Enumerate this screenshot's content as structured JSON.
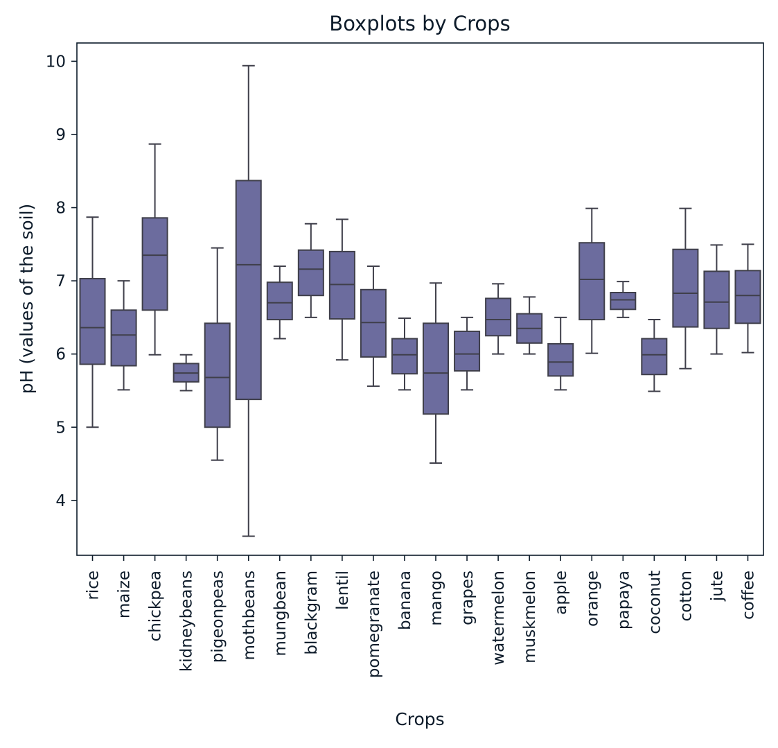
{
  "chart_data": {
    "type": "boxplot",
    "title": "Boxplots by Crops",
    "xlabel": "Crops",
    "ylabel": "pH (values of the soil)",
    "ylim": [
      3.25,
      10.25
    ],
    "yticks": [
      4,
      5,
      6,
      7,
      8,
      9,
      10
    ],
    "grid": false,
    "legend": "none",
    "box_color": "#6c6c9e",
    "line_color": "#3f3f4a",
    "categories": [
      "rice",
      "maize",
      "chickpea",
      "kidneybeans",
      "pigeonpeas",
      "mothbeans",
      "mungbean",
      "blackgram",
      "lentil",
      "pomegranate",
      "banana",
      "mango",
      "grapes",
      "watermelon",
      "muskmelon",
      "apple",
      "orange",
      "papaya",
      "coconut",
      "cotton",
      "jute",
      "coffee"
    ],
    "boxes": [
      {
        "whisker_low": 5.0,
        "q1": 5.86,
        "median": 6.36,
        "q3": 7.03,
        "whisker_high": 7.87
      },
      {
        "whisker_low": 5.51,
        "q1": 5.84,
        "median": 6.26,
        "q3": 6.6,
        "whisker_high": 7.0
      },
      {
        "whisker_low": 5.99,
        "q1": 6.6,
        "median": 7.35,
        "q3": 7.86,
        "whisker_high": 8.87
      },
      {
        "whisker_low": 5.5,
        "q1": 5.62,
        "median": 5.74,
        "q3": 5.87,
        "whisker_high": 5.99
      },
      {
        "whisker_low": 4.55,
        "q1": 5.0,
        "median": 5.68,
        "q3": 6.42,
        "whisker_high": 7.45
      },
      {
        "whisker_low": 3.51,
        "q1": 5.38,
        "median": 7.22,
        "q3": 8.37,
        "whisker_high": 9.94
      },
      {
        "whisker_low": 6.21,
        "q1": 6.47,
        "median": 6.7,
        "q3": 6.98,
        "whisker_high": 7.2
      },
      {
        "whisker_low": 6.5,
        "q1": 6.8,
        "median": 7.16,
        "q3": 7.42,
        "whisker_high": 7.78
      },
      {
        "whisker_low": 5.92,
        "q1": 6.48,
        "median": 6.95,
        "q3": 7.4,
        "whisker_high": 7.84
      },
      {
        "whisker_low": 5.56,
        "q1": 5.96,
        "median": 6.43,
        "q3": 6.88,
        "whisker_high": 7.2
      },
      {
        "whisker_low": 5.51,
        "q1": 5.73,
        "median": 5.99,
        "q3": 6.21,
        "whisker_high": 6.49
      },
      {
        "whisker_low": 4.51,
        "q1": 5.18,
        "median": 5.74,
        "q3": 6.42,
        "whisker_high": 6.97
      },
      {
        "whisker_low": 5.51,
        "q1": 5.77,
        "median": 6.0,
        "q3": 6.31,
        "whisker_high": 6.5
      },
      {
        "whisker_low": 6.0,
        "q1": 6.25,
        "median": 6.47,
        "q3": 6.76,
        "whisker_high": 6.96
      },
      {
        "whisker_low": 6.0,
        "q1": 6.15,
        "median": 6.35,
        "q3": 6.55,
        "whisker_high": 6.78
      },
      {
        "whisker_low": 5.51,
        "q1": 5.7,
        "median": 5.89,
        "q3": 6.14,
        "whisker_high": 6.5
      },
      {
        "whisker_low": 6.01,
        "q1": 6.47,
        "median": 7.02,
        "q3": 7.52,
        "whisker_high": 7.99
      },
      {
        "whisker_low": 6.5,
        "q1": 6.61,
        "median": 6.74,
        "q3": 6.84,
        "whisker_high": 6.99
      },
      {
        "whisker_low": 5.49,
        "q1": 5.72,
        "median": 5.99,
        "q3": 6.21,
        "whisker_high": 6.47
      },
      {
        "whisker_low": 5.8,
        "q1": 6.37,
        "median": 6.83,
        "q3": 7.43,
        "whisker_high": 7.99
      },
      {
        "whisker_low": 6.0,
        "q1": 6.35,
        "median": 6.71,
        "q3": 7.13,
        "whisker_high": 7.49
      },
      {
        "whisker_low": 6.02,
        "q1": 6.42,
        "median": 6.8,
        "q3": 7.14,
        "whisker_high": 7.5
      }
    ]
  }
}
